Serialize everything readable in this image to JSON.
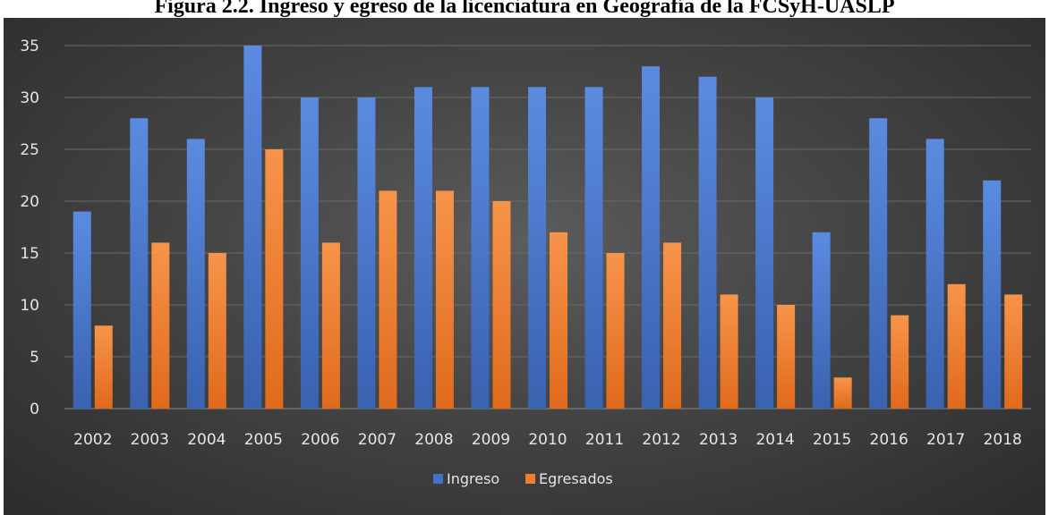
{
  "title": "Figura 2.2. Ingreso y egreso de la licenciatura en Geografía de la FCSyH-UASLP",
  "chart_data": {
    "type": "bar",
    "categories": [
      "2002",
      "2003",
      "2004",
      "2005",
      "2006",
      "2007",
      "2008",
      "2009",
      "2010",
      "2011",
      "2012",
      "2013",
      "2014",
      "2015",
      "2016",
      "2017",
      "2018"
    ],
    "series": [
      {
        "name": "Ingreso",
        "color": "#4472c4",
        "values": [
          19,
          28,
          26,
          35,
          30,
          30,
          31,
          31,
          31,
          31,
          33,
          32,
          30,
          17,
          28,
          26,
          22
        ]
      },
      {
        "name": "Egresados",
        "color": "#ed7d31",
        "values": [
          8,
          16,
          15,
          25,
          16,
          21,
          21,
          20,
          17,
          15,
          16,
          11,
          10,
          3,
          9,
          12,
          11
        ]
      }
    ],
    "ylim": [
      0,
      35
    ],
    "yticks": [
      0,
      5,
      10,
      15,
      20,
      25,
      30,
      35
    ],
    "grid": true,
    "legend_position": "bottom"
  }
}
